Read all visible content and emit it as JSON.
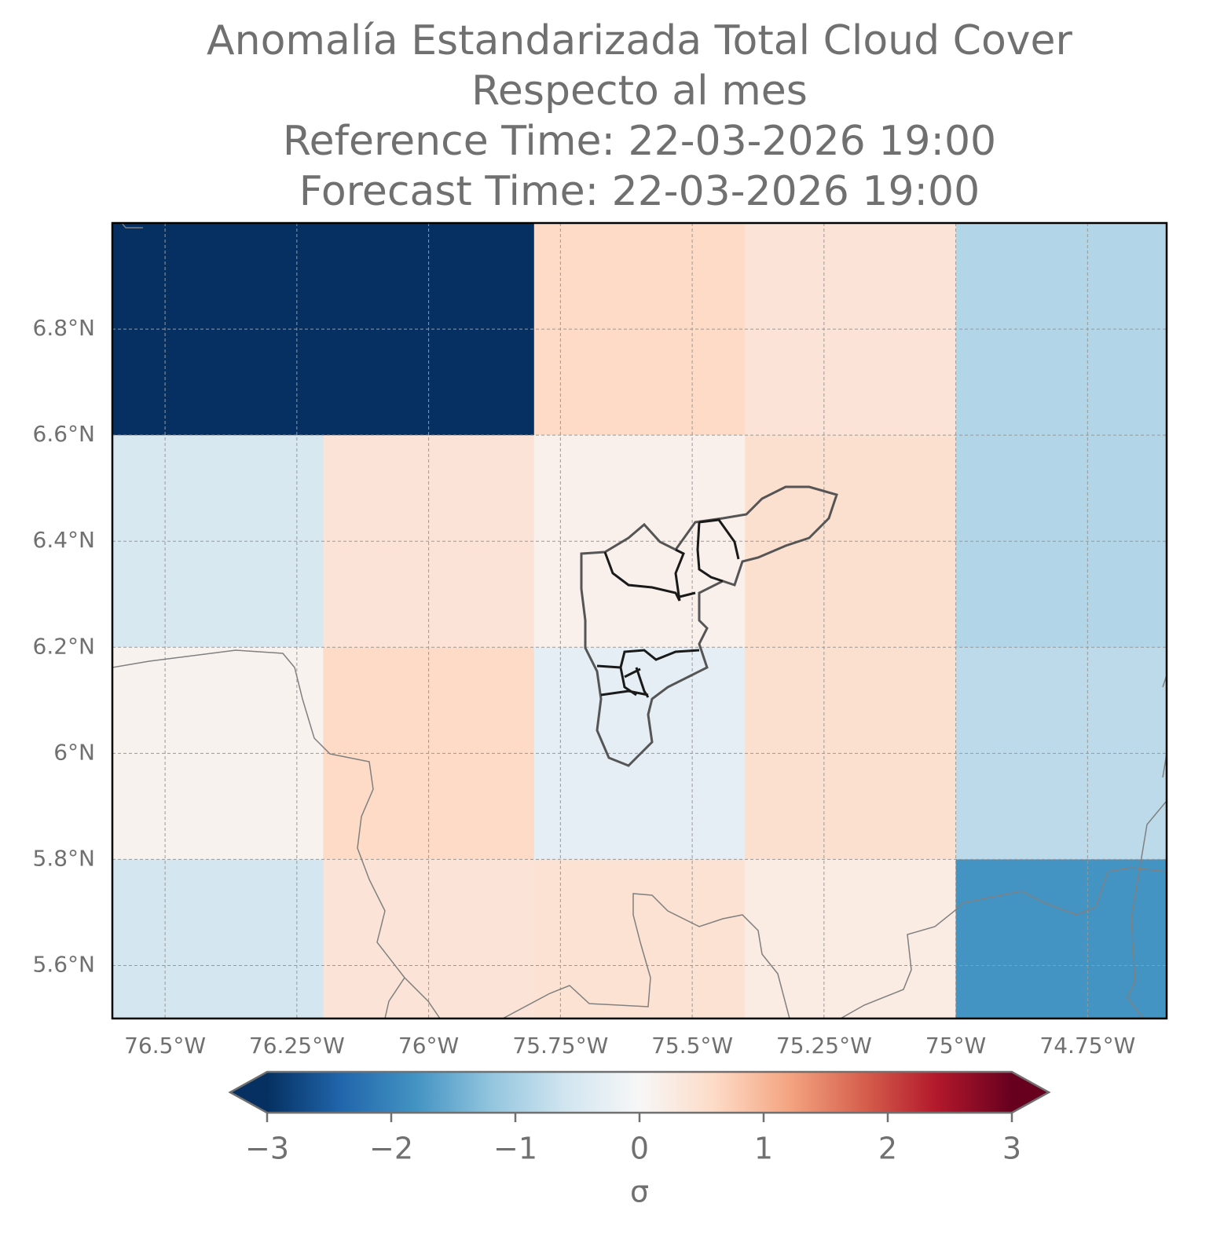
{
  "chart_data": {
    "type": "heatmap",
    "title": [
      "Anomalía Estandarizada Total Cloud Cover",
      "Respecto al mes",
      "Reference Time: 22-03-2026 19:00",
      "Forecast Time: 22-03-2026 19:00"
    ],
    "x_edges": [
      -76.6,
      -76.2,
      -75.8,
      -75.4,
      -75.0,
      -74.6
    ],
    "y_edges": [
      7.0,
      6.6,
      6.2,
      5.8,
      5.4
    ],
    "values": [
      [
        -3,
        -3,
        0.6,
        0.4,
        -0.9
      ],
      [
        -0.5,
        0.4,
        0.15,
        0.5,
        -0.9
      ],
      [
        0.1,
        0.6,
        -0.3,
        0.5,
        -0.8
      ],
      [
        -0.55,
        0.4,
        0.45,
        0.25,
        -1.8
      ]
    ],
    "xlim": [
      -76.6,
      -74.6
    ],
    "ylim": [
      5.5,
      7.0
    ],
    "xticks": [
      {
        "value": -76.5,
        "label": "76.5°W"
      },
      {
        "value": -76.25,
        "label": "76.25°W"
      },
      {
        "value": -76,
        "label": "76°W"
      },
      {
        "value": -75.75,
        "label": "75.75°W"
      },
      {
        "value": -75.5,
        "label": "75.5°W"
      },
      {
        "value": -75.25,
        "label": "75.25°W"
      },
      {
        "value": -75,
        "label": "75°W"
      },
      {
        "value": -74.75,
        "label": "74.75°W"
      }
    ],
    "yticks": [
      {
        "value": 5.6,
        "label": "5.6°N"
      },
      {
        "value": 5.8,
        "label": "5.8°N"
      },
      {
        "value": 6,
        "label": "6°N"
      },
      {
        "value": 6.2,
        "label": "6.2°N"
      },
      {
        "value": 6.4,
        "label": "6.4°N"
      },
      {
        "value": 6.6,
        "label": "6.6°N"
      },
      {
        "value": 6.8,
        "label": "6.8°N"
      }
    ],
    "grid": true,
    "colorscale": [
      "#053061",
      "#2166ac",
      "#4393c3",
      "#92c5de",
      "#d1e5f0",
      "#f7f7f7",
      "#fddbc7",
      "#f4a582",
      "#d6604d",
      "#b2182b",
      "#67001f"
    ],
    "clim": [
      -3,
      3
    ],
    "cticks": [
      {
        "value": -3,
        "label": "−3"
      },
      {
        "value": -2,
        "label": "−2"
      },
      {
        "value": -1,
        "label": "−1"
      },
      0,
      1,
      2,
      3
    ],
    "colorbar_label": "σ"
  }
}
